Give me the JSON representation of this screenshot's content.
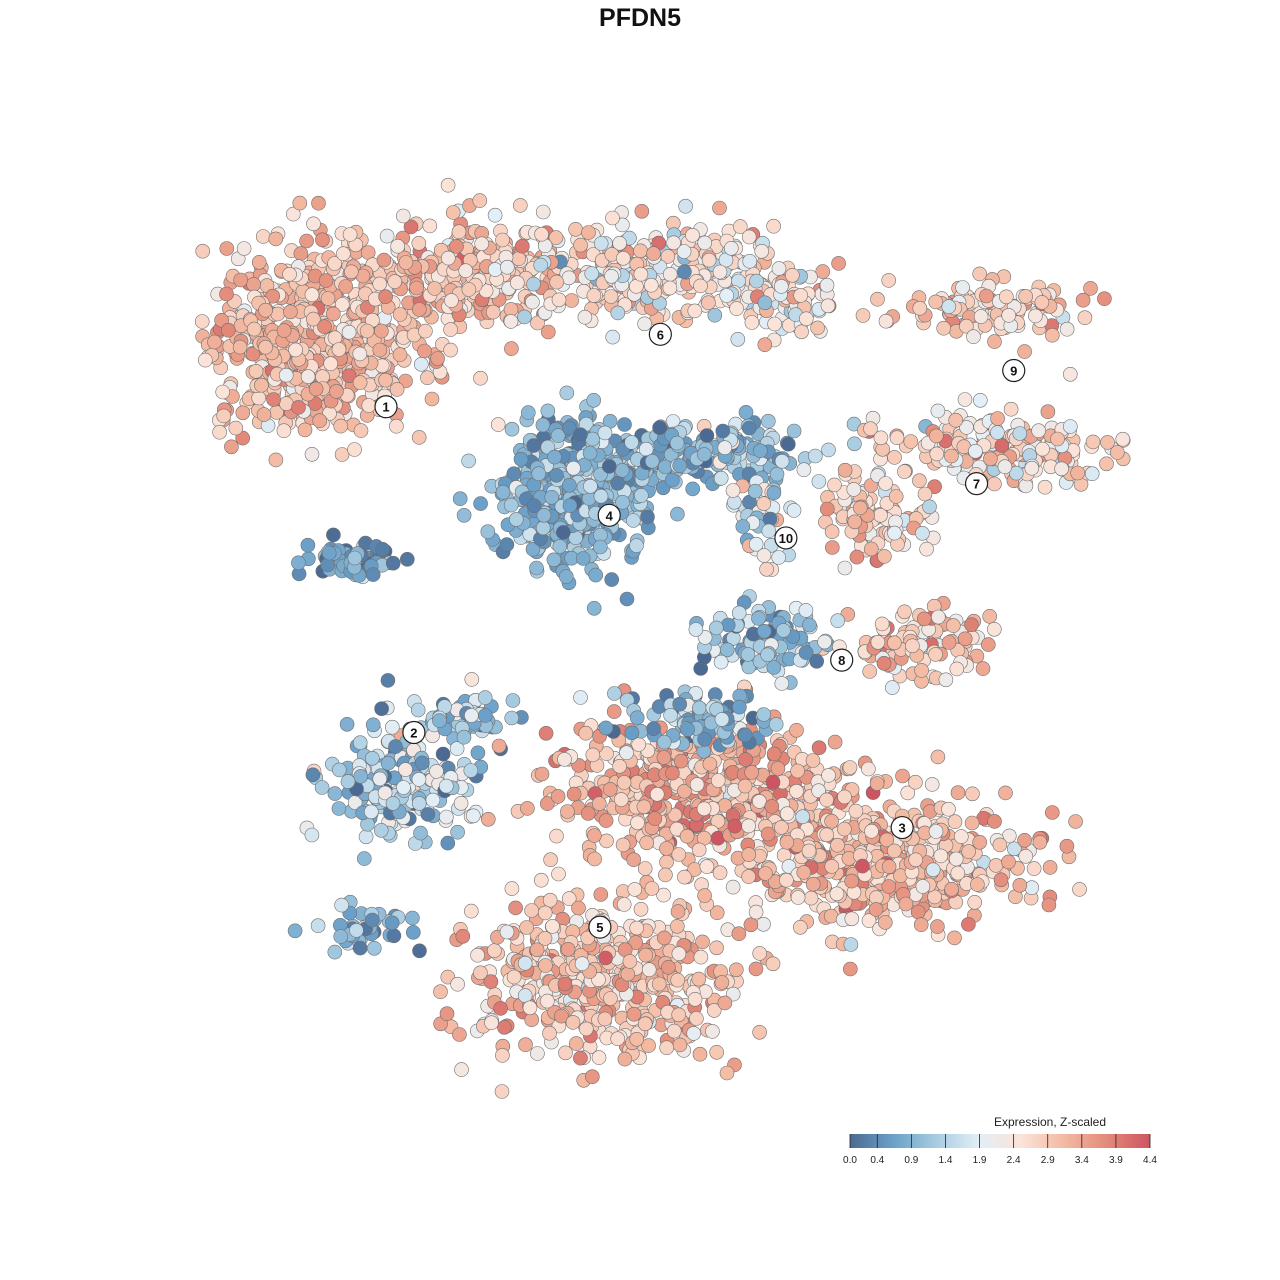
{
  "chart_data": {
    "type": "scatter",
    "title": "PFDN5",
    "xlabel": "",
    "ylabel": "",
    "grid": false,
    "legend_placement": "bottom-right",
    "legend": {
      "title": "Expression, Z-scaled",
      "ticks": [
        "0.0",
        "0.4",
        "0.9",
        "1.4",
        "1.9",
        "2.4",
        "2.9",
        "3.4",
        "3.9",
        "4.4"
      ],
      "range": [
        0.0,
        4.4
      ],
      "colors": [
        "#4b6a93",
        "#6aa0c9",
        "#a6cbe0",
        "#e3eef6",
        "#fbe3d8",
        "#f3b9a1",
        "#e38a79",
        "#cd5561"
      ]
    },
    "xlim": [
      0,
      100
    ],
    "ylim": [
      0,
      100
    ],
    "clusters": [
      {
        "label": "1",
        "x": 20.0,
        "y": 75.5,
        "mean_expression": 3.0
      },
      {
        "label": "2",
        "x": 23.0,
        "y": 39.5,
        "mean_expression": 1.2
      },
      {
        "label": "3",
        "x": 75.5,
        "y": 29.0,
        "mean_expression": 3.1
      },
      {
        "label": "4",
        "x": 44.0,
        "y": 63.5,
        "mean_expression": 0.9
      },
      {
        "label": "5",
        "x": 43.0,
        "y": 18.0,
        "mean_expression": 2.9
      },
      {
        "label": "6",
        "x": 49.5,
        "y": 83.5,
        "mean_expression": 2.4
      },
      {
        "label": "7",
        "x": 83.5,
        "y": 67.0,
        "mean_expression": 2.5
      },
      {
        "label": "8",
        "x": 69.0,
        "y": 47.5,
        "mean_expression": 2.6
      },
      {
        "label": "9",
        "x": 87.5,
        "y": 79.5,
        "mean_expression": 2.8
      },
      {
        "label": "10",
        "x": 63.0,
        "y": 61.0,
        "mean_expression": 1.8
      }
    ]
  }
}
